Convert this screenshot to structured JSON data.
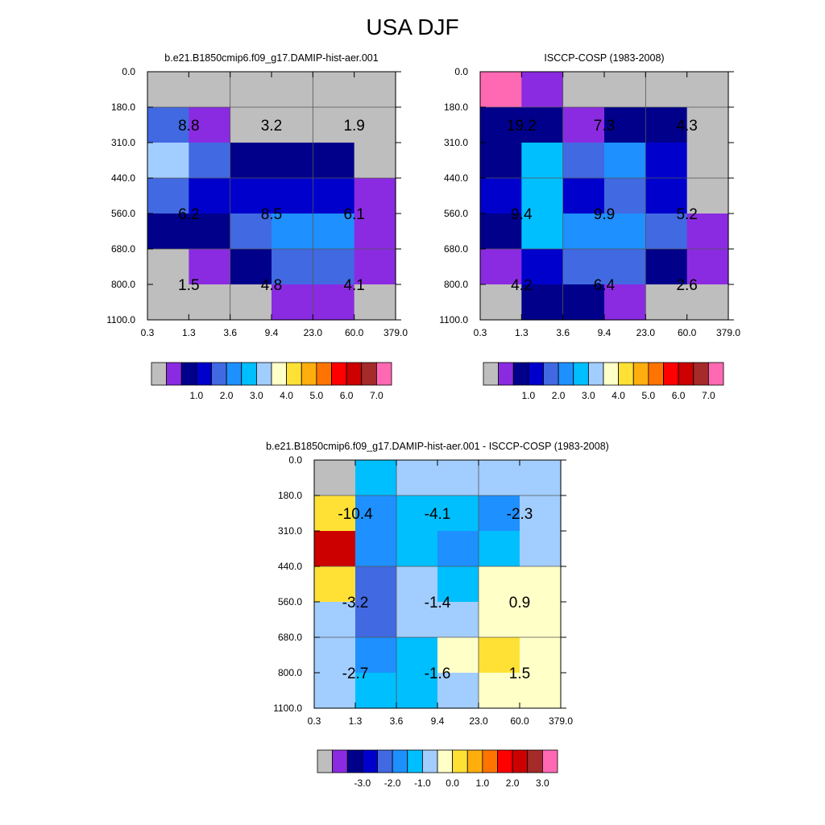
{
  "figure_title": "USA DJF",
  "palettes": {
    "abs": [
      "#bebebe",
      "#8a2be2",
      "#00008b",
      "#0000cd",
      "#4169e1",
      "#1e90ff",
      "#00bfff",
      "#a2cdff",
      "#ffffc8",
      "#ffe135",
      "#ffae0e",
      "#ff7400",
      "#ff0000",
      "#cd0000",
      "#a52a2a",
      "#ff69b4"
    ],
    "diff": [
      "#bebebe",
      "#8a2be2",
      "#00008b",
      "#0000cd",
      "#4169e1",
      "#1e90ff",
      "#00bfff",
      "#a2cdff",
      "#ffffc8",
      "#ffe135",
      "#ffae0e",
      "#ff7400",
      "#ff0000",
      "#cd0000",
      "#a52a2a",
      "#ff69b4"
    ]
  },
  "chart_data": [
    {
      "type": "heatmap",
      "title": "b.e21.B1850cmip6.f09_g17.DAMIP-hist-aer.001",
      "x_tick_labels": [
        "0.3",
        "1.3",
        "3.6",
        "9.4",
        "23.0",
        "60.0",
        "379.0"
      ],
      "y_tick_labels": [
        "0.0",
        "180.0",
        "310.0",
        "440.0",
        "560.0",
        "680.0",
        "800.0",
        "1100.0"
      ],
      "cell_color_index": [
        [
          0,
          0,
          0,
          0,
          0,
          0
        ],
        [
          4,
          1,
          0,
          0,
          0,
          0
        ],
        [
          7,
          4,
          2,
          2,
          2,
          0
        ],
        [
          4,
          3,
          3,
          3,
          3,
          1
        ],
        [
          2,
          2,
          4,
          5,
          5,
          1
        ],
        [
          0,
          1,
          2,
          4,
          4,
          1
        ],
        [
          0,
          0,
          0,
          1,
          1,
          0
        ]
      ],
      "box_values": [
        [
          "8.8",
          "3.2",
          "1.9"
        ],
        [
          "6.2",
          "8.5",
          "6.1"
        ],
        [
          "1.5",
          "4.8",
          "4.1"
        ]
      ],
      "colorbar_labels": [
        "1.0",
        "2.0",
        "3.0",
        "4.0",
        "5.0",
        "6.0",
        "7.0"
      ]
    },
    {
      "type": "heatmap",
      "title": "ISCCP-COSP (1983-2008)",
      "x_tick_labels": [
        "0.3",
        "1.3",
        "3.6",
        "9.4",
        "23.0",
        "60.0",
        "379.0"
      ],
      "y_tick_labels": [
        "0.0",
        "180.0",
        "310.0",
        "440.0",
        "560.0",
        "680.0",
        "800.0",
        "1100.0"
      ],
      "cell_color_index": [
        [
          15,
          1,
          0,
          0,
          0,
          0
        ],
        [
          2,
          2,
          1,
          2,
          2,
          0
        ],
        [
          2,
          6,
          4,
          5,
          3,
          0
        ],
        [
          3,
          6,
          3,
          4,
          3,
          0
        ],
        [
          2,
          6,
          5,
          5,
          4,
          1
        ],
        [
          1,
          3,
          4,
          4,
          2,
          1
        ],
        [
          0,
          2,
          2,
          1,
          0,
          0
        ]
      ],
      "box_values": [
        [
          "19.2",
          "7.3",
          "4.3"
        ],
        [
          "9.4",
          "9.9",
          "5.2"
        ],
        [
          "4.2",
          "6.4",
          "2.6"
        ]
      ],
      "colorbar_labels": [
        "1.0",
        "2.0",
        "3.0",
        "4.0",
        "5.0",
        "6.0",
        "7.0"
      ]
    },
    {
      "type": "heatmap",
      "title": "b.e21.B1850cmip6.f09_g17.DAMIP-hist-aer.001 - ISCCP-COSP (1983-2008)",
      "x_tick_labels": [
        "0.3",
        "1.3",
        "3.6",
        "9.4",
        "23.0",
        "60.0",
        "379.0"
      ],
      "y_tick_labels": [
        "0.0",
        "180.0",
        "310.0",
        "440.0",
        "560.0",
        "680.0",
        "800.0",
        "1100.0"
      ],
      "cell_color_index": [
        [
          0,
          6,
          7,
          7,
          7,
          7
        ],
        [
          9,
          5,
          6,
          6,
          5,
          7
        ],
        [
          13,
          5,
          6,
          5,
          6,
          7
        ],
        [
          9,
          4,
          7,
          6,
          8,
          8
        ],
        [
          7,
          4,
          7,
          7,
          8,
          8
        ],
        [
          7,
          5,
          6,
          8,
          9,
          8
        ],
        [
          7,
          6,
          6,
          7,
          8,
          8
        ]
      ],
      "box_values": [
        [
          "-10.4",
          "-4.1",
          "-2.3"
        ],
        [
          "-3.2",
          "-1.4",
          "0.9"
        ],
        [
          "-2.7",
          "-1.6",
          "1.5"
        ]
      ],
      "colorbar_labels": [
        "-3.0",
        "-2.0",
        "-1.0",
        "0.0",
        "1.0",
        "2.0",
        "3.0"
      ]
    }
  ]
}
